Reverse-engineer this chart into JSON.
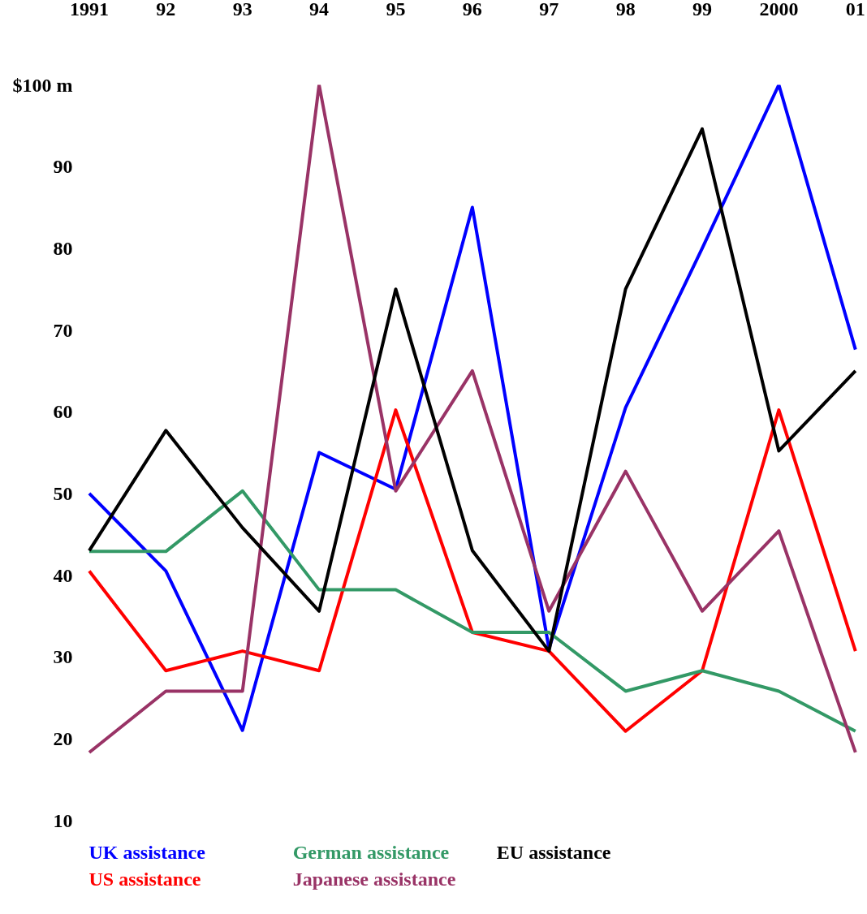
{
  "chart_data": {
    "type": "line",
    "categories": [
      "1991",
      "92",
      "93",
      "94",
      "95",
      "96",
      "97",
      "98",
      "99",
      "2000",
      "01"
    ],
    "ylim": [
      10,
      100
    ],
    "yticks": [
      10,
      20,
      30,
      40,
      50,
      60,
      70,
      80,
      90,
      {
        "value": 100,
        "label": "$100 m"
      }
    ],
    "grid": false,
    "marker": "none",
    "line_style": "solid",
    "series": [
      {
        "name": "UK assistance",
        "color": "#0000ff",
        "values": [
          50,
          40.5,
          21,
          55,
          50.5,
          85,
          31,
          60.5,
          80,
          100,
          67.6
        ]
      },
      {
        "name": "US assistance",
        "color": "#ff0000",
        "values": [
          40.5,
          28.3,
          30.7,
          28.3,
          60.2,
          33,
          30.7,
          20.9,
          28.3,
          60.2,
          30.7
        ]
      },
      {
        "name": "German assistance",
        "color": "#339966",
        "values": [
          42.9,
          42.9,
          50.3,
          38.2,
          38.2,
          33,
          33,
          25.8,
          28.3,
          25.8,
          20.9
        ]
      },
      {
        "name": "Japanese assistance",
        "color": "#993366",
        "values": [
          18.3,
          25.8,
          25.8,
          100,
          50.3,
          65,
          35.6,
          52.7,
          35.6,
          45.4,
          18.3
        ]
      },
      {
        "name": "EU assistance",
        "color": "#000000",
        "values": [
          43,
          57.7,
          45.8,
          35.6,
          75,
          43,
          30.7,
          75,
          94.6,
          55.2,
          65
        ]
      }
    ]
  }
}
